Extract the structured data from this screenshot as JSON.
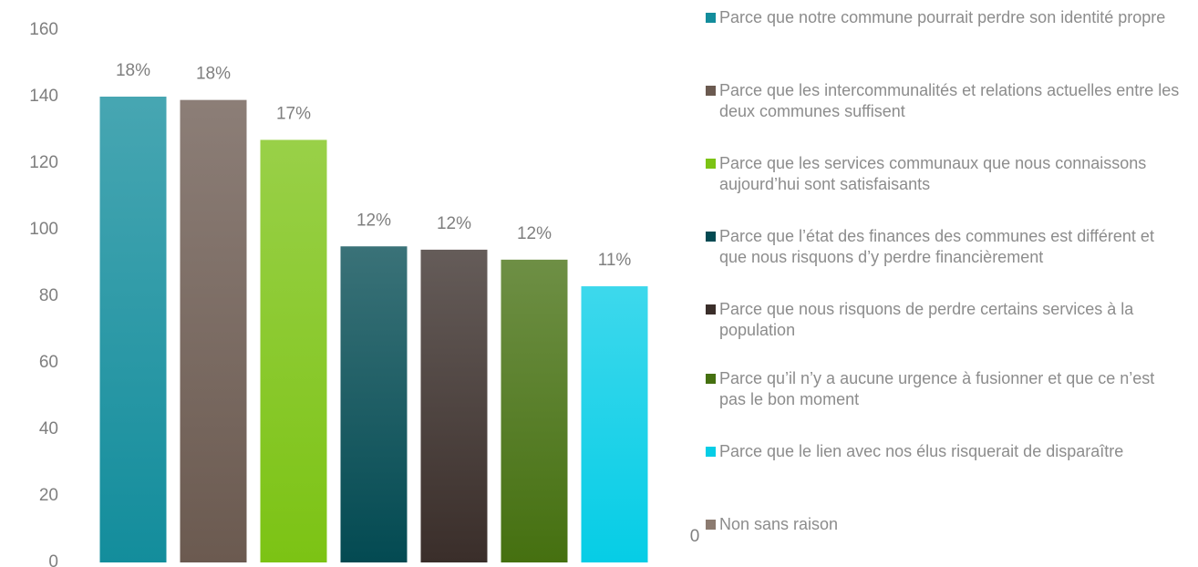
{
  "chart_data": {
    "type": "bar",
    "series": [
      {
        "name": "Parce que notre commune pourrait perdre son identité propre",
        "color": "#138d9c",
        "values": [
          140
        ],
        "value_labels": [
          "18%"
        ]
      },
      {
        "name": "Parce que les intercommunalités et relations actuelles entre les deux communes suffisent",
        "color": "#6b5a50",
        "values": [
          139
        ],
        "value_labels": [
          "18%"
        ]
      },
      {
        "name": "Parce que les services communaux que nous connaissons aujourd’hui sont satisfaisants",
        "color": "#7cc314",
        "values": [
          127
        ],
        "value_labels": [
          "17%"
        ]
      },
      {
        "name": "Parce que l’état des finances des communes est différent et que nous risquons d’y perdre financièrement",
        "color": "#034a52",
        "values": [
          95
        ],
        "value_labels": [
          "12%"
        ]
      },
      {
        "name": "Parce que nous risquons de perdre certains services à la population",
        "color": "#3a2e2a",
        "values": [
          94
        ],
        "value_labels": [
          "12%"
        ]
      },
      {
        "name": "Parce qu’il n’y a aucune urgence à fusionner et que ce n’est pas le bon moment",
        "color": "#457010",
        "values": [
          91
        ],
        "value_labels": [
          "12%"
        ]
      },
      {
        "name": "Parce que le lien avec nos élus risquerait de disparaître",
        "color": "#06cde6",
        "values": [
          83
        ],
        "value_labels": [
          "11%"
        ]
      },
      {
        "name": "Non sans raison",
        "color": "#8c7b70",
        "values": [
          0
        ]
      }
    ],
    "ylim": [
      0,
      160
    ],
    "yticks": [
      0,
      20,
      40,
      60,
      80,
      100,
      120,
      140,
      160
    ],
    "legend": "right"
  }
}
